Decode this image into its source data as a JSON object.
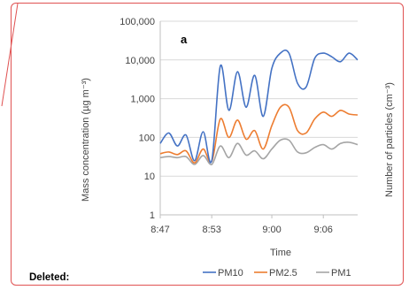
{
  "margin_note": {
    "label": "Deleted:"
  },
  "colors": {
    "pm10": "#4472c4",
    "pm25": "#ed7d31",
    "pm1": "#a5a5a5",
    "border": "#e05252"
  },
  "chart_data": {
    "type": "line",
    "panel_label": "a",
    "xlabel": "Time",
    "ylabel": "Mass concentration (µg m⁻³)",
    "y2label": "Number of particles (cm⁻³)",
    "y_scale": "log",
    "ylim": [
      1,
      100000
    ],
    "yticks": [
      "1",
      "10",
      "100",
      "1,000",
      "10,000",
      "100,000"
    ],
    "xticks": [
      "8:47",
      "8:53",
      "9:00",
      "9:06"
    ],
    "xlim": [
      "8:47",
      "9:10"
    ],
    "grid": "horizontal",
    "legend_position": "bottom",
    "x": [
      "8:47",
      "8:48",
      "8:49",
      "8:50",
      "8:51",
      "8:52",
      "8:53",
      "8:54",
      "8:55",
      "8:56",
      "8:57",
      "8:58",
      "8:59",
      "9:00",
      "9:01",
      "9:02",
      "9:03",
      "9:04",
      "9:05",
      "9:06",
      "9:07",
      "9:08",
      "9:09",
      "9:10"
    ],
    "series": [
      {
        "name": "PM10",
        "color": "#4472c4",
        "values": [
          70,
          130,
          60,
          115,
          25,
          140,
          25,
          7000,
          500,
          5000,
          600,
          4000,
          350,
          6000,
          15000,
          15000,
          2500,
          2000,
          11000,
          15000,
          12000,
          9000,
          15000,
          10000
        ]
      },
      {
        "name": "PM2.5",
        "color": "#ed7d31",
        "values": [
          38,
          42,
          36,
          45,
          22,
          50,
          24,
          300,
          100,
          280,
          90,
          150,
          50,
          200,
          600,
          600,
          150,
          130,
          300,
          450,
          350,
          500,
          400,
          380
        ]
      },
      {
        "name": "PM1",
        "color": "#a5a5a5",
        "values": [
          30,
          32,
          30,
          32,
          20,
          34,
          20,
          60,
          30,
          70,
          35,
          45,
          28,
          50,
          85,
          85,
          42,
          40,
          55,
          65,
          50,
          70,
          75,
          65
        ]
      }
    ]
  }
}
